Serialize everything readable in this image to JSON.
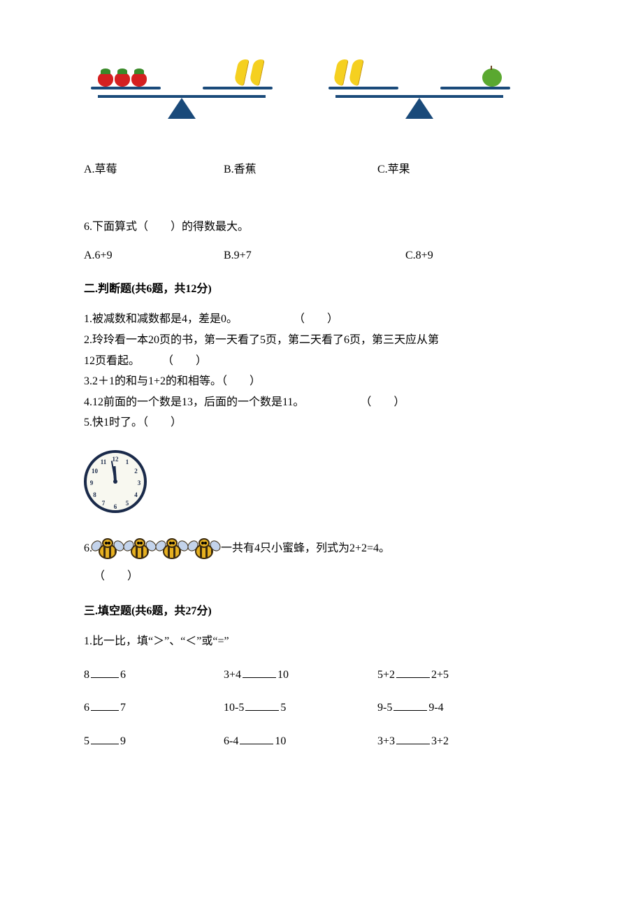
{
  "q5": {
    "options": {
      "a": "A.草莓",
      "b": "B.香蕉",
      "c": "C.苹果"
    }
  },
  "q6": {
    "text": "6.下面算式（　　）的得数最大。",
    "options": {
      "a": "A.6+9",
      "b": "B.9+7",
      "c": "C.8+9"
    }
  },
  "section2": {
    "title": "二.判断题(共6题，共12分)",
    "q1": {
      "text": "1.被减数和减数都是4，差是0。",
      "paren": "（　　）"
    },
    "q2": {
      "line1": "2.玲玲看一本20页的书，第一天看了5页，第二天看了6页，第三天应从第",
      "line2": "12页看起。　　　（　　）"
    },
    "q3": {
      "text": "3.2＋1的和与1+2的和相等。（　　）"
    },
    "q4": {
      "text": "4.12前面的一个数是13，后面的一个数是11。",
      "paren": "（　　）"
    },
    "q5": {
      "text": "5.快1时了。（　　）"
    },
    "q6": {
      "text": "一共有4只小蜜蜂，列式为2+2=4。",
      "paren": "（　　）",
      "prefix": "6."
    }
  },
  "section3": {
    "title": "三.填空题(共6题，共27分)",
    "q1": {
      "text": "1.比一比，填“＞”、“＜”或“=”"
    },
    "rows": [
      {
        "c1a": "8",
        "c1b": "6",
        "c2a": "3+4",
        "c2b": "10",
        "c3a": "5+2",
        "c3b": "2+5"
      },
      {
        "c1a": "6",
        "c1b": "7",
        "c2a": "10-5",
        "c2b": "5",
        "c3a": "9-5",
        "c3b": "9-4"
      },
      {
        "c1a": "5",
        "c1b": "9",
        "c2a": "6-4",
        "c2b": "10",
        "c3a": "3+3",
        "c3b": "3+2"
      }
    ]
  },
  "clock_numbers": [
    "12",
    "1",
    "2",
    "3",
    "4",
    "5",
    "6",
    "7",
    "8",
    "9",
    "10",
    "11"
  ]
}
